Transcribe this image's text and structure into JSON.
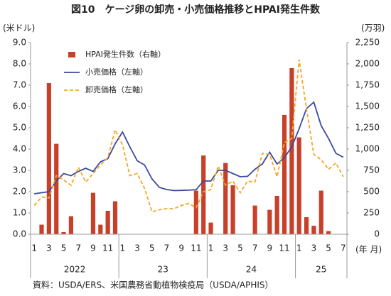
{
  "chart_data": {
    "type": "combo",
    "title": "図10　ケージ卵の卸売・小売価格推移とHPAI発生件数",
    "y_label": "(米ドル)",
    "y2_label": "(万羽)",
    "x_label": "(年 月)",
    "source": "資料：USDA/ERS、米国農務省動植物検疫局（USDA/APHIS）",
    "categories": [
      "1",
      null,
      "3",
      null,
      "5",
      null,
      "7",
      null,
      "9",
      null,
      "11",
      null,
      "1",
      null,
      "3",
      null,
      "5",
      null,
      "7",
      null,
      "9",
      null,
      "11",
      null,
      "1",
      null,
      "3",
      null,
      "5",
      null,
      "7",
      null,
      "9",
      null,
      "11",
      null,
      "1",
      null,
      "3",
      null,
      "5",
      null,
      "7"
    ],
    "years": [
      "2022",
      "23",
      "24",
      "25"
    ],
    "ylim": [
      0,
      9
    ],
    "yticks": [
      {
        "value": 0,
        "label": "0.0"
      },
      {
        "value": 1,
        "label": "1.0"
      },
      {
        "value": 2,
        "label": "2.0"
      },
      {
        "value": 3,
        "label": "3.0"
      },
      {
        "value": 4,
        "label": "4.0"
      },
      {
        "value": 5,
        "label": "5.0"
      },
      {
        "value": 6,
        "label": "6.0"
      },
      {
        "value": 7,
        "label": "7.0"
      },
      {
        "value": 8,
        "label": "8.0"
      },
      {
        "value": 9,
        "label": "9.0"
      }
    ],
    "y2lim": [
      0,
      2250
    ],
    "y2ticks": [
      0,
      250,
      500,
      750,
      {
        "value": 1000,
        "label": "1,000"
      },
      {
        "value": 1250,
        "label": "1,250"
      },
      {
        "value": 1500,
        "label": "1,500"
      },
      {
        "value": 1750,
        "label": "1,750"
      },
      {
        "value": 2000,
        "label": "2,000"
      },
      {
        "value": 2250,
        "label": "2,250"
      }
    ],
    "grid": false,
    "legend": "upper-left",
    "series": [
      {
        "name": "HPAI発生件数（右軸）",
        "type": "bar",
        "axis": "y2",
        "color": "#c8402a",
        "values": [
          0,
          112,
          1775,
          1062,
          25,
          212,
          0,
          0,
          487,
          112,
          275,
          387,
          0,
          0,
          0,
          0,
          0,
          0,
          0,
          0,
          0,
          0,
          512,
          925,
          137,
          0,
          837,
          575,
          0,
          0,
          337,
          0,
          287,
          450,
          1400,
          1950,
          1137,
          200,
          100,
          512,
          37,
          0,
          0
        ]
      },
      {
        "name": "小売価格（左軸）",
        "type": "line",
        "color": "#3a4a9e",
        "values": [
          1.9,
          1.95,
          2.0,
          2.5,
          2.85,
          2.75,
          2.95,
          3.1,
          2.95,
          3.4,
          3.55,
          4.25,
          4.8,
          4.1,
          3.45,
          3.25,
          2.6,
          2.2,
          2.1,
          2.05,
          2.06,
          2.07,
          2.09,
          2.5,
          2.5,
          3.0,
          3.0,
          2.85,
          2.7,
          2.72,
          3.05,
          3.3,
          3.85,
          3.3,
          3.6,
          4.1,
          4.95,
          5.9,
          6.2,
          5.1,
          4.5,
          3.8,
          3.62
        ]
      },
      {
        "name": "卸売価格（左軸）",
        "type": "line",
        "dash": true,
        "color": "#f5a623",
        "values": [
          1.35,
          1.75,
          1.7,
          2.75,
          2.55,
          2.3,
          3.15,
          2.45,
          2.85,
          3.25,
          3.6,
          4.9,
          4.2,
          2.75,
          2.85,
          2.15,
          1.05,
          1.15,
          1.2,
          1.2,
          1.35,
          1.45,
          1.25,
          2.0,
          2.1,
          3.2,
          2.3,
          2.5,
          1.95,
          2.5,
          2.45,
          3.8,
          3.75,
          2.7,
          4.3,
          4.5,
          8.2,
          5.9,
          3.75,
          3.5,
          3.05,
          3.35,
          2.7
        ]
      }
    ]
  }
}
